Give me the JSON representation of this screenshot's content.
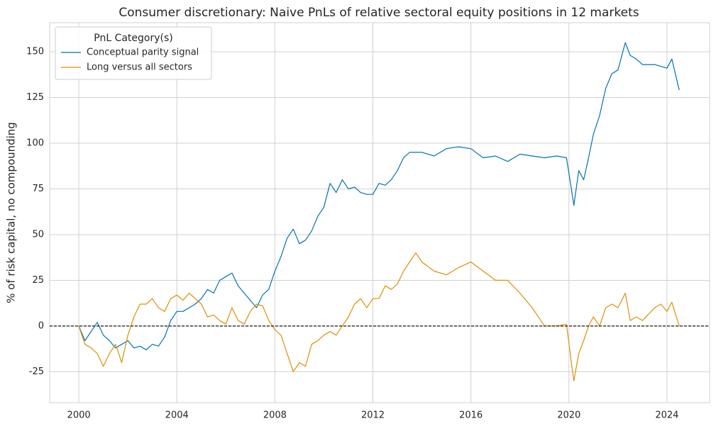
{
  "chart_data": {
    "type": "line",
    "title": "Consumer discretionary: Naive PnLs of relative sectoral equity positions in 12 markets",
    "y_label": "% of risk capital, no compounding",
    "legend_title": "PnL Category(s)",
    "legend": "upper left",
    "grid": true,
    "reference_line": 0,
    "x": [
      2000,
      2000.25,
      2000.5,
      2000.75,
      2001,
      2001.25,
      2001.5,
      2001.75,
      2002,
      2002.25,
      2002.5,
      2002.75,
      2003,
      2003.25,
      2003.5,
      2003.75,
      2004,
      2004.25,
      2004.5,
      2004.75,
      2005,
      2005.25,
      2005.5,
      2005.75,
      2006,
      2006.25,
      2006.5,
      2006.75,
      2007,
      2007.25,
      2007.5,
      2007.75,
      2008,
      2008.25,
      2008.5,
      2008.75,
      2009,
      2009.25,
      2009.5,
      2009.75,
      2010,
      2010.25,
      2010.5,
      2010.75,
      2011,
      2011.25,
      2011.5,
      2011.75,
      2012,
      2012.25,
      2012.5,
      2012.75,
      2013,
      2013.25,
      2013.5,
      2013.75,
      2014,
      2014.5,
      2015,
      2015.5,
      2016,
      2016.5,
      2017,
      2017.5,
      2018,
      2018.5,
      2019,
      2019.5,
      2019.9,
      2020.1,
      2020.2,
      2020.4,
      2020.6,
      2020.8,
      2021,
      2021.25,
      2021.5,
      2021.75,
      2022,
      2022.3,
      2022.5,
      2022.75,
      2023,
      2023.5,
      2023.75,
      2024,
      2024.2,
      2024.5
    ],
    "series": [
      {
        "name": "Conceptual parity signal",
        "color": "#0173b2",
        "values": [
          0,
          -8,
          -3,
          2,
          -5,
          -8,
          -12,
          -10,
          -8,
          -12,
          -11,
          -13,
          -10,
          -11,
          -6,
          3,
          8,
          8,
          10,
          12,
          15,
          20,
          18,
          25,
          27,
          29,
          22,
          18,
          14,
          10,
          17,
          20,
          30,
          38,
          48,
          53,
          45,
          47,
          52,
          60,
          65,
          78,
          73,
          80,
          75,
          76,
          73,
          72,
          72,
          78,
          77,
          80,
          85,
          92,
          95,
          95,
          95,
          93,
          97,
          98,
          97,
          92,
          93,
          90,
          94,
          93,
          92,
          93,
          92,
          75,
          66,
          85,
          80,
          92,
          105,
          115,
          130,
          138,
          140,
          155,
          148,
          146,
          143,
          143,
          142,
          141,
          146,
          129
        ]
      },
      {
        "name": "Long versus all sectors",
        "color": "#de8f05",
        "values": [
          0,
          -10,
          -12,
          -15,
          -22,
          -15,
          -10,
          -20,
          -5,
          5,
          12,
          12,
          15,
          10,
          8,
          15,
          17,
          14,
          18,
          15,
          12,
          5,
          6,
          3,
          1,
          10,
          3,
          1,
          8,
          12,
          11,
          3,
          -2,
          -5,
          -15,
          -25,
          -20,
          -22,
          -10,
          -8,
          -5,
          -3,
          -5,
          0,
          5,
          12,
          15,
          10,
          15,
          15,
          22,
          20,
          23,
          30,
          35,
          40,
          35,
          30,
          28,
          32,
          35,
          30,
          25,
          25,
          18,
          10,
          0,
          0,
          1,
          -20,
          -30,
          -15,
          -8,
          0,
          5,
          0,
          10,
          12,
          10,
          18,
          3,
          5,
          3,
          10,
          12,
          8,
          13,
          0
        ]
      }
    ],
    "xlim": [
      1998.81,
      2025.74
    ],
    "xticks": [
      2000,
      2004,
      2008,
      2012,
      2016,
      2020,
      2024
    ],
    "ylim": [
      -41.9,
      165.9
    ],
    "yticks": [
      -25,
      0,
      25,
      50,
      75,
      100,
      125,
      150
    ]
  }
}
